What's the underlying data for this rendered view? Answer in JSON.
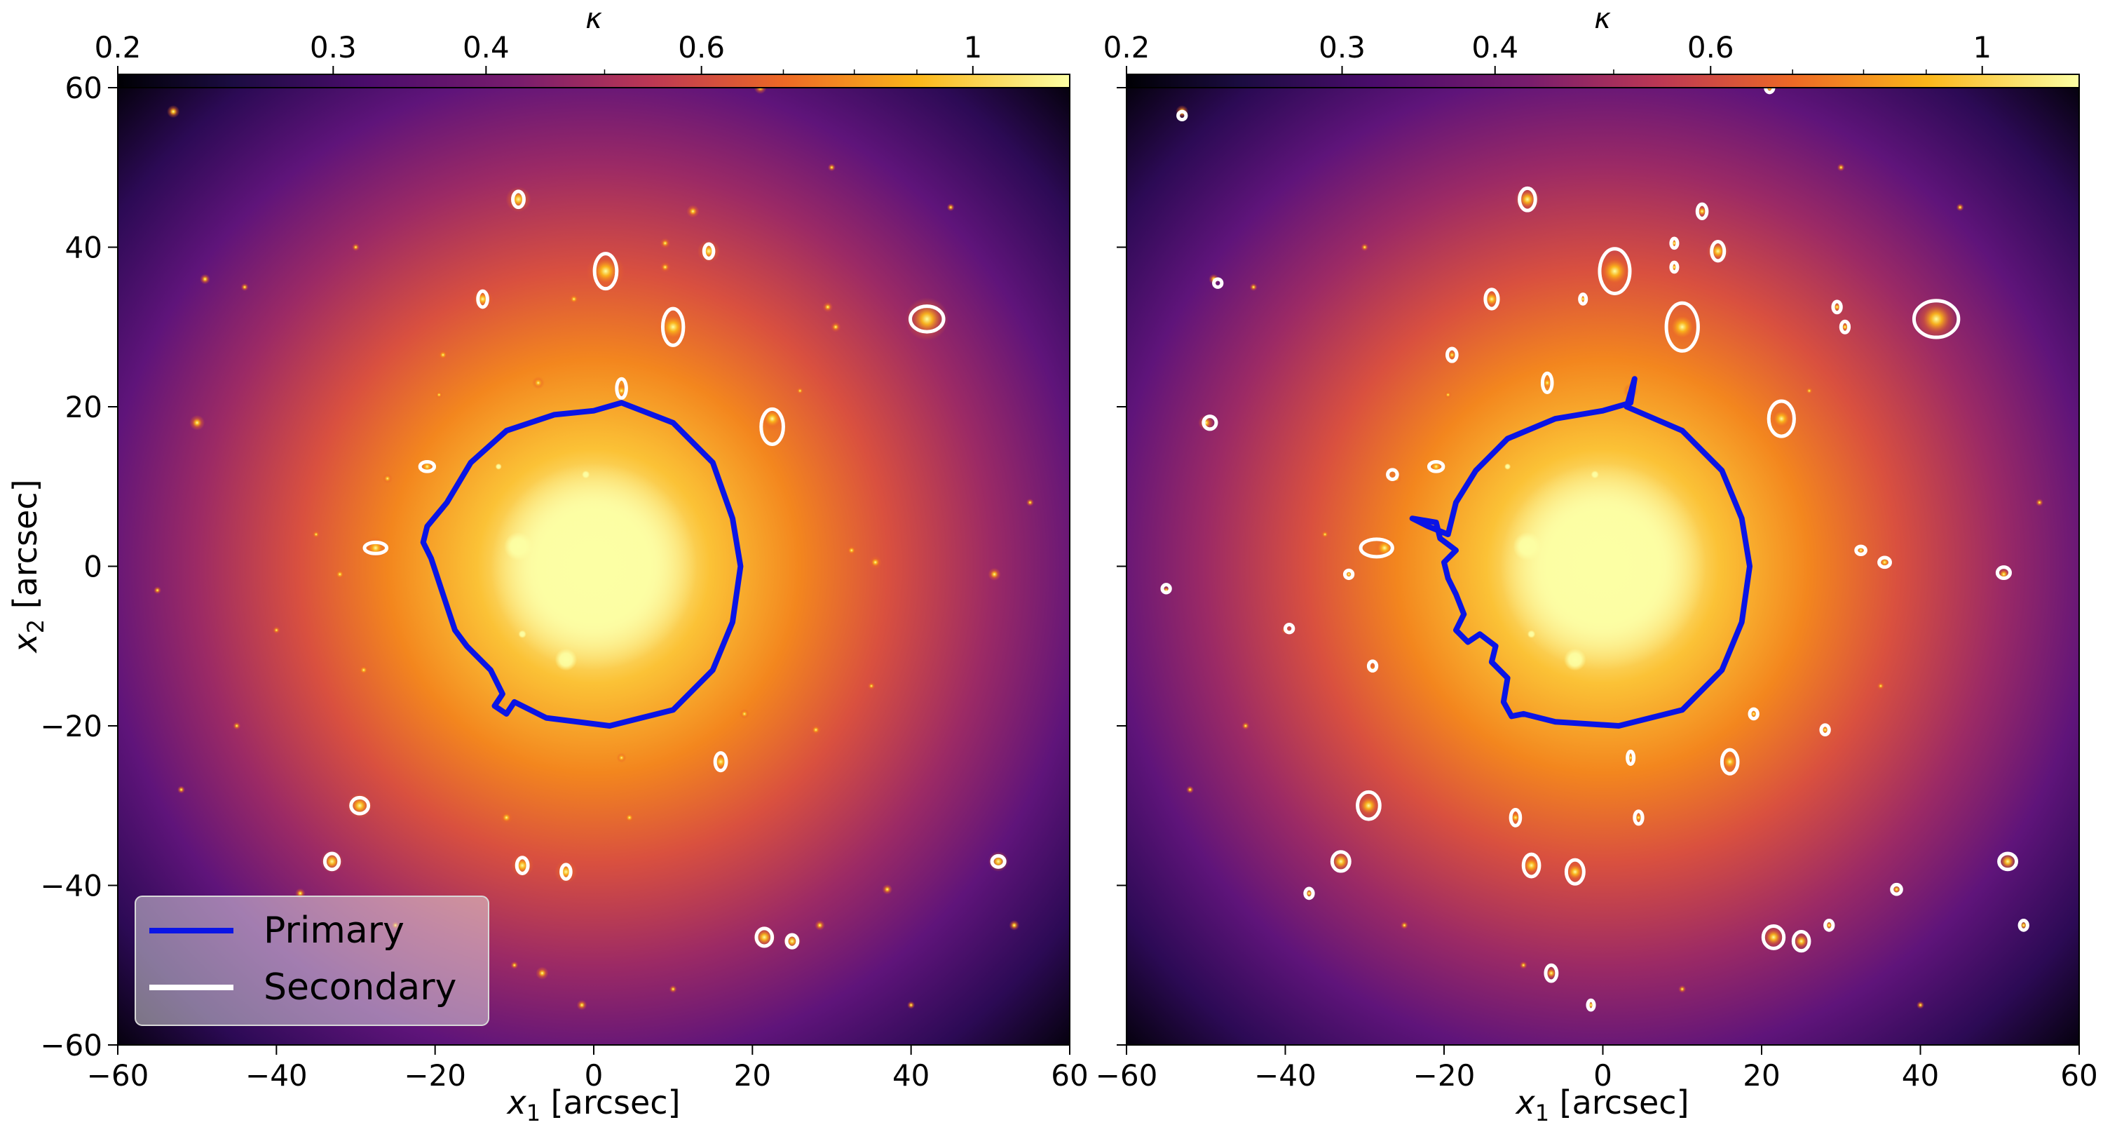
{
  "chart_data": [
    {
      "type": "heatmap",
      "panel": "left",
      "colorbar": {
        "label": "κ",
        "scale": "log",
        "range": [
          0.2,
          1.2
        ],
        "ticks": [
          0.2,
          0.3,
          0.4,
          0.6,
          1
        ],
        "tick_labels": [
          "0.2",
          "0.3",
          "0.4",
          "0.6",
          "1"
        ],
        "colormap": [
          "#000004",
          "#320a5e",
          "#781c6d",
          "#bc3754",
          "#ed6925",
          "#fbb61a",
          "#fcffa4"
        ]
      },
      "xlabel": "x1 [arcsec]",
      "ylabel": "x2 [arcsec]",
      "xlim": [
        -60,
        60
      ],
      "ylim": [
        -60,
        60
      ],
      "xticks": [
        -60,
        -40,
        -20,
        0,
        20,
        40,
        60
      ],
      "yticks": [
        -60,
        -40,
        -20,
        0,
        20,
        40,
        60
      ],
      "xtick_labels": [
        "−60",
        "−40",
        "−20",
        "0",
        "20",
        "40",
        "60"
      ],
      "ytick_labels": [
        "−60",
        "−40",
        "−20",
        "0",
        "20",
        "40",
        "60"
      ],
      "legend": {
        "placement": "lower-left",
        "entries": [
          {
            "label": "Primary",
            "color": "#0a14e6"
          },
          {
            "label": "Secondary",
            "color": "#ffffff"
          }
        ]
      },
      "primary_curve": [
        [
          3.5,
          20.5
        ],
        [
          10,
          18
        ],
        [
          15,
          13
        ],
        [
          17.5,
          6
        ],
        [
          18.5,
          0
        ],
        [
          17.5,
          -7
        ],
        [
          15,
          -13
        ],
        [
          10,
          -18
        ],
        [
          2,
          -20
        ],
        [
          -6,
          -19
        ],
        [
          -10,
          -17
        ],
        [
          -11,
          -18.5
        ],
        [
          -12.5,
          -17.5
        ],
        [
          -11.5,
          -16
        ],
        [
          -13,
          -13
        ],
        [
          -16,
          -10
        ],
        [
          -17.5,
          -8
        ],
        [
          -18.5,
          -5
        ],
        [
          -19.5,
          -2
        ],
        [
          -20.5,
          1
        ],
        [
          -21.5,
          3
        ],
        [
          -21,
          5
        ],
        [
          -18.5,
          8
        ],
        [
          -15.5,
          13
        ],
        [
          -11,
          17
        ],
        [
          -5,
          19
        ],
        [
          0,
          19.5
        ],
        [
          3.5,
          20.5
        ]
      ],
      "secondary_contours": [
        {
          "cx": 1.5,
          "cy": 37,
          "rx": 1.4,
          "ry": 2.2
        },
        {
          "cx": 10,
          "cy": 30,
          "rx": 1.3,
          "ry": 2.3
        },
        {
          "cx": 42,
          "cy": 31,
          "rx": 2.1,
          "ry": 1.6
        },
        {
          "cx": -9.5,
          "cy": 46,
          "rx": 0.7,
          "ry": 1
        },
        {
          "cx": 14.5,
          "cy": 39.5,
          "rx": 0.6,
          "ry": 0.9
        },
        {
          "cx": -14,
          "cy": 33.5,
          "rx": 0.6,
          "ry": 1
        },
        {
          "cx": 3.5,
          "cy": 22.3,
          "rx": 0.6,
          "ry": 1.2
        },
        {
          "cx": 22.5,
          "cy": 17.5,
          "rx": 1.4,
          "ry": 2.2
        },
        {
          "cx": -21,
          "cy": 12.5,
          "rx": 0.9,
          "ry": 0.6
        },
        {
          "cx": -27.5,
          "cy": 2.3,
          "rx": 1.4,
          "ry": 0.7
        },
        {
          "cx": -29.5,
          "cy": -30,
          "rx": 1.1,
          "ry": 1
        },
        {
          "cx": -33,
          "cy": -37,
          "rx": 0.9,
          "ry": 1
        },
        {
          "cx": 16,
          "cy": -24.5,
          "rx": 0.7,
          "ry": 1.1
        },
        {
          "cx": -9,
          "cy": -37.5,
          "rx": 0.7,
          "ry": 1
        },
        {
          "cx": -3.5,
          "cy": -38.3,
          "rx": 0.6,
          "ry": 0.9
        },
        {
          "cx": 51,
          "cy": -37,
          "rx": 0.8,
          "ry": 0.7
        },
        {
          "cx": 21.5,
          "cy": -46.5,
          "rx": 1,
          "ry": 1.1
        },
        {
          "cx": 25,
          "cy": -47,
          "rx": 0.7,
          "ry": 0.8
        }
      ]
    },
    {
      "type": "heatmap",
      "panel": "right",
      "colorbar": {
        "label": "κ",
        "scale": "log",
        "range": [
          0.2,
          1.2
        ],
        "ticks": [
          0.2,
          0.3,
          0.4,
          0.6,
          1
        ],
        "tick_labels": [
          "0.2",
          "0.3",
          "0.4",
          "0.6",
          "1"
        ],
        "colormap": [
          "#000004",
          "#320a5e",
          "#781c6d",
          "#bc3754",
          "#ed6925",
          "#fbb61a",
          "#fcffa4"
        ]
      },
      "xlabel": "x1 [arcsec]",
      "ylabel": "",
      "xlim": [
        -60,
        60
      ],
      "ylim": [
        -60,
        60
      ],
      "xticks": [
        -60,
        -40,
        -20,
        0,
        20,
        40,
        60
      ],
      "yticks": [
        -60,
        -40,
        -20,
        0,
        20,
        40,
        60
      ],
      "xtick_labels": [
        "−60",
        "−40",
        "−20",
        "0",
        "20",
        "40",
        "60"
      ],
      "ytick_labels": [],
      "primary_curve": [
        [
          3.5,
          20.5
        ],
        [
          4,
          23.5
        ],
        [
          3,
          20
        ],
        [
          10,
          17
        ],
        [
          15,
          12
        ],
        [
          17.5,
          6
        ],
        [
          18.5,
          0
        ],
        [
          17.5,
          -7
        ],
        [
          15,
          -13
        ],
        [
          10,
          -18
        ],
        [
          2,
          -20
        ],
        [
          -6,
          -19.5
        ],
        [
          -10,
          -18.5
        ],
        [
          -11.5,
          -18.8
        ],
        [
          -12.5,
          -17
        ],
        [
          -12,
          -14
        ],
        [
          -14,
          -12
        ],
        [
          -13.5,
          -10
        ],
        [
          -15.5,
          -8.5
        ],
        [
          -17,
          -9.5
        ],
        [
          -18.5,
          -8
        ],
        [
          -17.5,
          -6
        ],
        [
          -18.5,
          -3.5
        ],
        [
          -19.5,
          -1.5
        ],
        [
          -20,
          0.5
        ],
        [
          -18.5,
          2
        ],
        [
          -20.5,
          3.5
        ],
        [
          -21,
          5.5
        ],
        [
          -24,
          6
        ],
        [
          -22,
          5
        ],
        [
          -19.5,
          4
        ],
        [
          -18.5,
          8
        ],
        [
          -16,
          12
        ],
        [
          -12,
          16
        ],
        [
          -6,
          18.5
        ],
        [
          0,
          19.5
        ],
        [
          3.5,
          20.5
        ]
      ],
      "secondary_contours": [
        {
          "cx": 1.5,
          "cy": 37,
          "rx": 1.9,
          "ry": 2.8
        },
        {
          "cx": 10,
          "cy": 30,
          "rx": 2,
          "ry": 3
        },
        {
          "cx": 42,
          "cy": 31,
          "rx": 2.8,
          "ry": 2.3
        },
        {
          "cx": -9.5,
          "cy": 46,
          "rx": 1,
          "ry": 1.4
        },
        {
          "cx": 14.5,
          "cy": 39.5,
          "rx": 0.8,
          "ry": 1.2
        },
        {
          "cx": 12.5,
          "cy": 44.5,
          "rx": 0.6,
          "ry": 0.9
        },
        {
          "cx": 9,
          "cy": 40.5,
          "rx": 0.4,
          "ry": 0.6
        },
        {
          "cx": 9,
          "cy": 37.5,
          "rx": 0.4,
          "ry": 0.6
        },
        {
          "cx": -14,
          "cy": 33.5,
          "rx": 0.8,
          "ry": 1.2
        },
        {
          "cx": -2.5,
          "cy": 33.5,
          "rx": 0.4,
          "ry": 0.6
        },
        {
          "cx": -19,
          "cy": 26.5,
          "rx": 0.6,
          "ry": 0.8
        },
        {
          "cx": -7,
          "cy": 23,
          "rx": 0.6,
          "ry": 1.2
        },
        {
          "cx": 29.5,
          "cy": 32.5,
          "rx": 0.5,
          "ry": 0.7
        },
        {
          "cx": 30.5,
          "cy": 30,
          "rx": 0.5,
          "ry": 0.7
        },
        {
          "cx": -49.5,
          "cy": 18,
          "rx": 0.8,
          "ry": 0.8
        },
        {
          "cx": -53,
          "cy": 56.5,
          "rx": 0.5,
          "ry": 0.5
        },
        {
          "cx": -48.5,
          "cy": 35.5,
          "rx": 0.5,
          "ry": 0.5
        },
        {
          "cx": 22.5,
          "cy": 18.5,
          "rx": 1.6,
          "ry": 2.2
        },
        {
          "cx": 21,
          "cy": 60,
          "rx": 0.5,
          "ry": 0.6
        },
        {
          "cx": -26.5,
          "cy": 11.5,
          "rx": 0.6,
          "ry": 0.6
        },
        {
          "cx": -21,
          "cy": 12.5,
          "rx": 0.9,
          "ry": 0.6
        },
        {
          "cx": -28.5,
          "cy": 2.3,
          "rx": 2,
          "ry": 1.1
        },
        {
          "cx": -32,
          "cy": -1,
          "rx": 0.5,
          "ry": 0.5
        },
        {
          "cx": -55,
          "cy": -2.8,
          "rx": 0.5,
          "ry": 0.5
        },
        {
          "cx": -39.5,
          "cy": -7.8,
          "rx": 0.5,
          "ry": 0.5
        },
        {
          "cx": -29,
          "cy": -12.5,
          "rx": 0.5,
          "ry": 0.6
        },
        {
          "cx": 32.5,
          "cy": 2,
          "rx": 0.6,
          "ry": 0.5
        },
        {
          "cx": 35.5,
          "cy": 0.5,
          "rx": 0.7,
          "ry": 0.6
        },
        {
          "cx": 50.5,
          "cy": -0.8,
          "rx": 0.8,
          "ry": 0.7
        },
        {
          "cx": 19,
          "cy": -18.5,
          "rx": 0.5,
          "ry": 0.6
        },
        {
          "cx": 28,
          "cy": -20.5,
          "rx": 0.5,
          "ry": 0.6
        },
        {
          "cx": 3.5,
          "cy": -24,
          "rx": 0.4,
          "ry": 0.8
        },
        {
          "cx": 16,
          "cy": -24.5,
          "rx": 1,
          "ry": 1.5
        },
        {
          "cx": -29.5,
          "cy": -30,
          "rx": 1.4,
          "ry": 1.7
        },
        {
          "cx": -33,
          "cy": -37,
          "rx": 1.1,
          "ry": 1.2
        },
        {
          "cx": -37,
          "cy": -41,
          "rx": 0.5,
          "ry": 0.6
        },
        {
          "cx": -11,
          "cy": -31.5,
          "rx": 0.6,
          "ry": 1
        },
        {
          "cx": 4.5,
          "cy": -31.5,
          "rx": 0.5,
          "ry": 0.8
        },
        {
          "cx": -9,
          "cy": -37.5,
          "rx": 1,
          "ry": 1.4
        },
        {
          "cx": -3.5,
          "cy": -38.3,
          "rx": 1.1,
          "ry": 1.5
        },
        {
          "cx": 37,
          "cy": -40.5,
          "rx": 0.6,
          "ry": 0.6
        },
        {
          "cx": 51,
          "cy": -37,
          "rx": 1.1,
          "ry": 1
        },
        {
          "cx": 53,
          "cy": -45,
          "rx": 0.5,
          "ry": 0.6
        },
        {
          "cx": 28.5,
          "cy": -45,
          "rx": 0.5,
          "ry": 0.6
        },
        {
          "cx": 21.5,
          "cy": -46.5,
          "rx": 1.3,
          "ry": 1.4
        },
        {
          "cx": 25,
          "cy": -47,
          "rx": 1,
          "ry": 1.2
        },
        {
          "cx": -6.5,
          "cy": -51,
          "rx": 0.7,
          "ry": 1
        },
        {
          "cx": -1.5,
          "cy": -55,
          "rx": 0.4,
          "ry": 0.6
        }
      ]
    }
  ],
  "galaxies": [
    [
      -9.5,
      46,
      1
    ],
    [
      14.5,
      39.5,
      0.9
    ],
    [
      1.5,
      37,
      1.5
    ],
    [
      10,
      30,
      1.4
    ],
    [
      42,
      31,
      1.7
    ],
    [
      -14,
      33.5,
      0.8
    ],
    [
      3.5,
      22,
      0.6
    ],
    [
      22.5,
      18.5,
      1
    ],
    [
      -21,
      12.5,
      0.6
    ],
    [
      -27.5,
      2.3,
      0.9
    ],
    [
      -29.5,
      -30,
      1
    ],
    [
      -33,
      -37,
      0.9
    ],
    [
      16,
      -24.5,
      0.8
    ],
    [
      -9,
      -37.5,
      0.9
    ],
    [
      -3.5,
      -38.3,
      0.9
    ],
    [
      51,
      -37,
      0.8
    ],
    [
      21.5,
      -46.5,
      0.9
    ],
    [
      25,
      -47,
      0.7
    ],
    [
      -50,
      18,
      0.6
    ],
    [
      -53,
      57,
      0.5
    ],
    [
      -49,
      36,
      0.4
    ],
    [
      21,
      60,
      0.5
    ],
    [
      -26,
      11,
      0.4
    ],
    [
      -32,
      -1,
      0.4
    ],
    [
      -55,
      -3,
      0.3
    ],
    [
      -40,
      -8,
      0.3
    ],
    [
      -29,
      -13,
      0.4
    ],
    [
      32.5,
      2,
      0.4
    ],
    [
      35.5,
      0.5,
      0.5
    ],
    [
      50.5,
      -1,
      0.5
    ],
    [
      19,
      -18.5,
      0.4
    ],
    [
      28,
      -20.5,
      0.4
    ],
    [
      3.5,
      -24,
      0.4
    ],
    [
      -37,
      -41,
      0.4
    ],
    [
      -11,
      -31.5,
      0.5
    ],
    [
      4.5,
      -31.5,
      0.4
    ],
    [
      37,
      -40.5,
      0.4
    ],
    [
      53,
      -45,
      0.4
    ],
    [
      28.5,
      -45,
      0.4
    ],
    [
      -6.5,
      -51,
      0.5
    ],
    [
      -1.5,
      -55,
      0.4
    ],
    [
      12.5,
      44.5,
      0.5
    ],
    [
      9,
      40.5,
      0.4
    ],
    [
      9,
      37.5,
      0.4
    ],
    [
      -2.5,
      33.5,
      0.4
    ],
    [
      -19,
      26.5,
      0.4
    ],
    [
      -7,
      23,
      0.5
    ],
    [
      29.5,
      32.5,
      0.4
    ],
    [
      30.5,
      30,
      0.4
    ],
    [
      -19.5,
      21.5,
      0.3
    ],
    [
      26,
      22,
      0.3
    ],
    [
      -44,
      35,
      0.3
    ],
    [
      -35,
      4,
      0.3
    ],
    [
      35,
      -15,
      0.3
    ],
    [
      -45,
      -20,
      0.3
    ],
    [
      45,
      45,
      0.3
    ],
    [
      -10,
      -50,
      0.3
    ],
    [
      10,
      -53,
      0.3
    ],
    [
      -25,
      -45,
      0.3
    ],
    [
      40,
      -55,
      0.3
    ],
    [
      55,
      8,
      0.3
    ],
    [
      -52,
      -28,
      0.3
    ],
    [
      30,
      50,
      0.3
    ],
    [
      -30,
      40,
      0.3
    ]
  ],
  "bright_knots": [
    [
      -3.5,
      -11.7,
      1.4
    ],
    [
      -9.5,
      2.5,
      1.8
    ],
    [
      -1,
      11.5,
      0.5
    ],
    [
      -9,
      -8.5,
      0.5
    ],
    [
      -12,
      12.5,
      0.4
    ]
  ]
}
